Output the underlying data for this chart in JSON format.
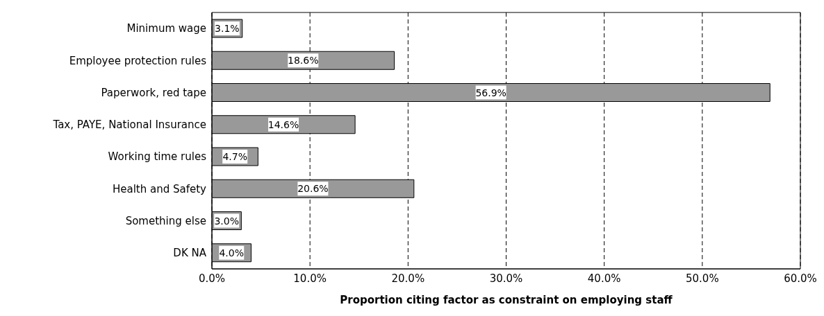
{
  "chart_data": {
    "type": "bar",
    "orientation": "horizontal",
    "xlabel": "Proportion citing factor as constraint on employing staff",
    "categories": [
      "Minimum wage",
      "Employee protection rules",
      "Paperwork, red tape",
      "Tax, PAYE, National Insurance",
      "Working time rules",
      "Health and Safety",
      "Something else",
      "DK NA"
    ],
    "values": [
      3.1,
      18.6,
      56.9,
      14.6,
      4.7,
      20.6,
      3.0,
      4.0
    ],
    "value_labels": [
      "3.1%",
      "18.6%",
      "56.9%",
      "14.6%",
      "4.7%",
      "20.6%",
      "3.0%",
      "4.0%"
    ],
    "color": "#999999",
    "xlim": [
      0,
      60
    ],
    "xticks": [
      {
        "value": 0,
        "label": "0.0%"
      },
      {
        "value": 10,
        "label": "10.0%"
      },
      {
        "value": 20,
        "label": "20.0%"
      },
      {
        "value": 30,
        "label": "30.0%"
      },
      {
        "value": 40,
        "label": "40.0%"
      },
      {
        "value": 50,
        "label": "50.0%"
      },
      {
        "value": 60,
        "label": "60.0%"
      }
    ],
    "grid": "x",
    "legend": false
  }
}
